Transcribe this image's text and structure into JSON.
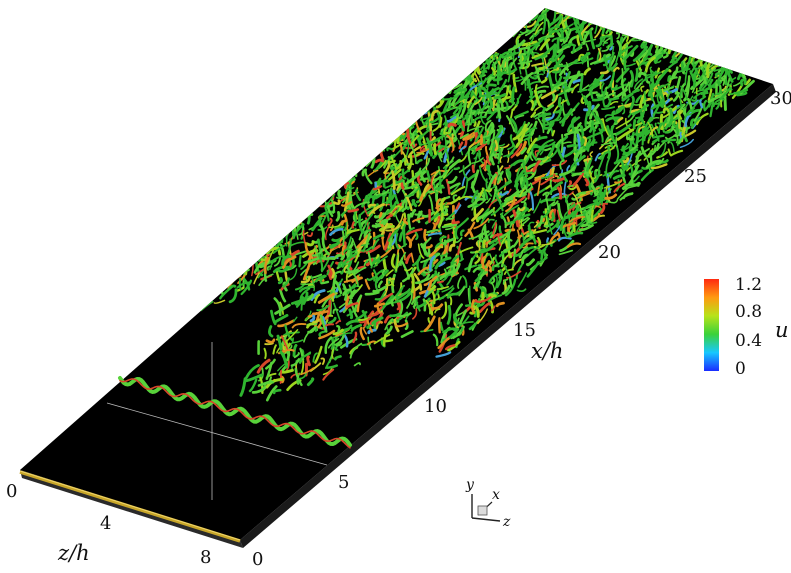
{
  "figure": {
    "x_axis": {
      "label": "x/h",
      "ticks": [
        5,
        10,
        15,
        20,
        25,
        30
      ],
      "range": [
        0,
        30
      ]
    },
    "z_axis": {
      "label": "z/h",
      "ticks": [
        0,
        4,
        8
      ],
      "range": [
        0,
        9
      ]
    },
    "colorbar": {
      "variable": "u",
      "ticks": [
        "1.2",
        "0.8",
        "0.4",
        "0"
      ],
      "range": [
        0,
        1.2
      ],
      "colors": [
        "#1a2cff",
        "#18c8ff",
        "#3ad23a",
        "#b7e31a",
        "#ff9a10",
        "#ff2a10"
      ]
    },
    "triad": {
      "y": "y",
      "x": "x",
      "z": "z"
    },
    "plane_color": "#000000",
    "structure_colors": [
      "#2fb52f",
      "#58d23a",
      "#9cd61e",
      "#c9c82a",
      "#e09020",
      "#d8472a",
      "#44a0d8"
    ],
    "wire_color": "#c8a628"
  }
}
